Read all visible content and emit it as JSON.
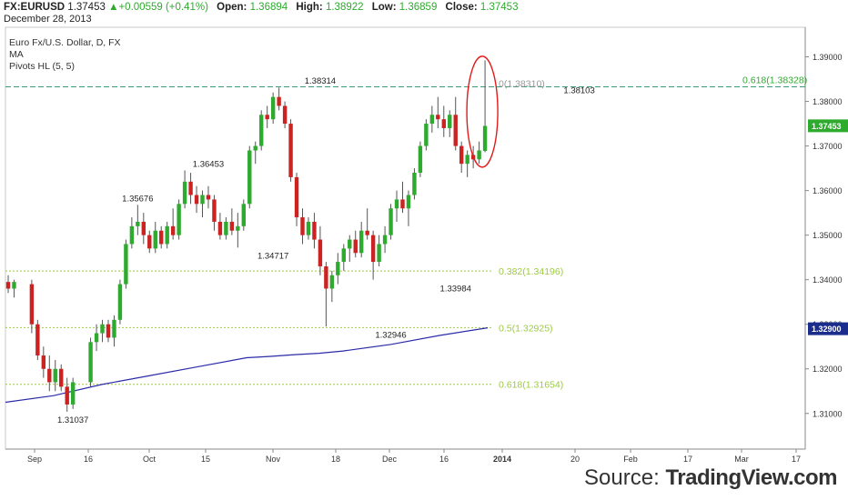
{
  "header": {
    "symbol": "FX:EURUSD",
    "last": "1.37453",
    "change": "+0.00559 (+0.41%)",
    "open_label": "Open:",
    "open": "1.36894",
    "high_label": "High:",
    "high": "1.38922",
    "low_label": "Low:",
    "low": "1.36859",
    "close_label": "Close:",
    "close": "1.37453",
    "date": "December 28, 2013"
  },
  "legend": [
    "Euro Fx/U.S. Dollar, D, FX",
    "MA",
    "Pivots HL (5, 5)"
  ],
  "source": {
    "prefix": "Source: ",
    "brand": "TradingView.com"
  },
  "colors": {
    "up": "#2eaa2e",
    "down": "#cc2222",
    "ma": "#2b2ba8",
    "fib": "#9ccc3c",
    "fib_top": "#2eaa2e",
    "circle": "#e21b1b",
    "price_box": "#2eaa2e",
    "ma_box": "#1b2d8c"
  },
  "chart_data": {
    "type": "candlestick",
    "x_ticks": [
      "Sep",
      "16",
      "Oct",
      "15",
      "Nov",
      "18",
      "Dec",
      "16",
      "2014",
      "20",
      "Feb",
      "17",
      "Mar",
      "17"
    ],
    "y_ticks": [
      "1.31000",
      "1.32000",
      "1.33000",
      "1.34000",
      "1.35000",
      "1.36000",
      "1.37000",
      "1.38000",
      "1.39000"
    ],
    "ylim": [
      1.302,
      1.395
    ],
    "grid": false,
    "last_price_label": "1.37453",
    "ma_label": "1.32900",
    "fib_levels": [
      {
        "label": "0.618(1.38328)",
        "value": 1.38328
      },
      {
        "label": "0(1.38310)",
        "value": 1.3831
      },
      {
        "label": "0.382(1.34196)",
        "value": 1.34196
      },
      {
        "label": "0.5(1.32925)",
        "value": 1.32925
      },
      {
        "label": "0.618(1.31654)",
        "value": 1.31654
      }
    ],
    "pivots": [
      {
        "label": "1.38314",
        "value": 1.38314,
        "i": 53,
        "pos": "above"
      },
      {
        "label": "1.38103",
        "value": 1.38103,
        "i": 97,
        "pos": "above"
      },
      {
        "label": "1.36453",
        "value": 1.36453,
        "i": 34,
        "pos": "above"
      },
      {
        "label": "1.35676",
        "value": 1.35676,
        "i": 22,
        "pos": "above"
      },
      {
        "label": "1.34717",
        "value": 1.34717,
        "i": 45,
        "pos": "below"
      },
      {
        "label": "1.33984",
        "value": 1.33984,
        "i": 76,
        "pos": "below"
      },
      {
        "label": "1.32946",
        "value": 1.32946,
        "i": 65,
        "pos": "below"
      },
      {
        "label": "1.31037",
        "value": 1.31037,
        "i": 11,
        "pos": "below"
      }
    ],
    "candles": [
      [
        1.3395,
        1.341,
        1.337,
        1.338
      ],
      [
        1.338,
        1.34,
        1.336,
        1.3395
      ],
      [
        1.339,
        1.34,
        1.328,
        1.33
      ],
      [
        1.33,
        1.331,
        1.322,
        1.323
      ],
      [
        1.323,
        1.325,
        1.318,
        1.32
      ],
      [
        1.32,
        1.323,
        1.315,
        1.317
      ],
      [
        1.317,
        1.322,
        1.315,
        1.32
      ],
      [
        1.32,
        1.321,
        1.315,
        1.316
      ],
      [
        1.316,
        1.318,
        1.3104,
        1.312
      ],
      [
        1.312,
        1.318,
        1.311,
        1.317
      ],
      [
        1.317,
        1.327,
        1.316,
        1.326
      ],
      [
        1.326,
        1.33,
        1.324,
        1.328
      ],
      [
        1.328,
        1.331,
        1.326,
        1.33
      ],
      [
        1.33,
        1.331,
        1.326,
        1.327
      ],
      [
        1.327,
        1.332,
        1.325,
        1.331
      ],
      [
        1.331,
        1.34,
        1.33,
        1.339
      ],
      [
        1.339,
        1.349,
        1.338,
        1.348
      ],
      [
        1.348,
        1.354,
        1.347,
        1.352
      ],
      [
        1.352,
        1.3568,
        1.35,
        1.353
      ],
      [
        1.353,
        1.355,
        1.348,
        1.35
      ],
      [
        1.35,
        1.351,
        1.346,
        1.347
      ],
      [
        1.347,
        1.353,
        1.346,
        1.351
      ],
      [
        1.351,
        1.352,
        1.347,
        1.348
      ],
      [
        1.348,
        1.353,
        1.347,
        1.352
      ],
      [
        1.352,
        1.356,
        1.349,
        1.35
      ],
      [
        1.35,
        1.358,
        1.349,
        1.357
      ],
      [
        1.357,
        1.3645,
        1.356,
        1.362
      ],
      [
        1.362,
        1.364,
        1.357,
        1.359
      ],
      [
        1.359,
        1.361,
        1.355,
        1.357
      ],
      [
        1.357,
        1.36,
        1.354,
        1.359
      ],
      [
        1.359,
        1.361,
        1.356,
        1.358
      ],
      [
        1.358,
        1.359,
        1.351,
        1.353
      ],
      [
        1.353,
        1.355,
        1.349,
        1.35
      ],
      [
        1.35,
        1.354,
        1.349,
        1.353
      ],
      [
        1.353,
        1.356,
        1.35,
        1.351
      ],
      [
        1.351,
        1.355,
        1.3472,
        1.352
      ],
      [
        1.352,
        1.358,
        1.351,
        1.357
      ],
      [
        1.357,
        1.37,
        1.356,
        1.369
      ],
      [
        1.369,
        1.371,
        1.366,
        1.37
      ],
      [
        1.37,
        1.378,
        1.369,
        1.377
      ],
      [
        1.377,
        1.379,
        1.374,
        1.376
      ],
      [
        1.376,
        1.382,
        1.375,
        1.381
      ],
      [
        1.381,
        1.3831,
        1.378,
        1.379
      ],
      [
        1.379,
        1.38,
        1.374,
        1.375
      ],
      [
        1.375,
        1.376,
        1.362,
        1.363
      ],
      [
        1.363,
        1.364,
        1.352,
        1.354
      ],
      [
        1.354,
        1.356,
        1.348,
        1.35
      ],
      [
        1.35,
        1.354,
        1.349,
        1.353
      ],
      [
        1.353,
        1.355,
        1.347,
        1.349
      ],
      [
        1.349,
        1.352,
        1.341,
        1.343
      ],
      [
        1.343,
        1.344,
        1.3295,
        1.338
      ],
      [
        1.338,
        1.342,
        1.335,
        1.341
      ],
      [
        1.341,
        1.346,
        1.339,
        1.344
      ],
      [
        1.344,
        1.348,
        1.342,
        1.347
      ],
      [
        1.347,
        1.35,
        1.344,
        1.349
      ],
      [
        1.349,
        1.351,
        1.345,
        1.346
      ],
      [
        1.346,
        1.353,
        1.345,
        1.351
      ],
      [
        1.351,
        1.356,
        1.349,
        1.35
      ],
      [
        1.35,
        1.351,
        1.34,
        1.344
      ],
      [
        1.344,
        1.35,
        1.343,
        1.348
      ],
      [
        1.348,
        1.352,
        1.346,
        1.35
      ],
      [
        1.35,
        1.357,
        1.349,
        1.356
      ],
      [
        1.356,
        1.36,
        1.353,
        1.358
      ],
      [
        1.358,
        1.362,
        1.355,
        1.356
      ],
      [
        1.356,
        1.36,
        1.352,
        1.359
      ],
      [
        1.359,
        1.365,
        1.358,
        1.364
      ],
      [
        1.364,
        1.371,
        1.363,
        1.37
      ],
      [
        1.37,
        1.376,
        1.369,
        1.375
      ],
      [
        1.375,
        1.379,
        1.373,
        1.377
      ],
      [
        1.377,
        1.381,
        1.374,
        1.376
      ],
      [
        1.376,
        1.379,
        1.372,
        1.374
      ],
      [
        1.374,
        1.378,
        1.372,
        1.377
      ],
      [
        1.377,
        1.381,
        1.369,
        1.37
      ],
      [
        1.37,
        1.371,
        1.364,
        1.366
      ],
      [
        1.366,
        1.369,
        1.363,
        1.368
      ],
      [
        1.368,
        1.37,
        1.365,
        1.367
      ],
      [
        1.367,
        1.371,
        1.366,
        1.369
      ],
      [
        1.3689,
        1.3892,
        1.3686,
        1.3745
      ]
    ],
    "candle_x_index": [
      0,
      1,
      4,
      5,
      6,
      7,
      8,
      9,
      10,
      11,
      14,
      15,
      16,
      17,
      18,
      19,
      20,
      21,
      22,
      23,
      24,
      25,
      26,
      27,
      28,
      29,
      30,
      31,
      32,
      33,
      34,
      35,
      36,
      37,
      38,
      39,
      40,
      41,
      42,
      43,
      44,
      45,
      46,
      47,
      48,
      49,
      50,
      51,
      52,
      53,
      54,
      55,
      56,
      57,
      58,
      59,
      60,
      61,
      62,
      63,
      64,
      65,
      66,
      67,
      68,
      69,
      70,
      71,
      72,
      73,
      74,
      75,
      76,
      77,
      78,
      79,
      80,
      81
    ],
    "ma": [
      [
        0,
        1.3125
      ],
      [
        10,
        1.314
      ],
      [
        20,
        1.3165
      ],
      [
        30,
        1.3185
      ],
      [
        40,
        1.3205
      ],
      [
        50,
        1.3225
      ],
      [
        55,
        1.3228
      ],
      [
        60,
        1.3232
      ],
      [
        65,
        1.3235
      ],
      [
        70,
        1.324
      ],
      [
        80,
        1.3255
      ],
      [
        90,
        1.3275
      ],
      [
        100,
        1.3292
      ]
    ]
  }
}
